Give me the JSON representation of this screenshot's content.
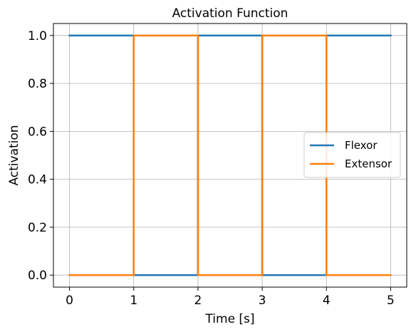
{
  "chart_data": {
    "type": "line",
    "title": "Activation Function",
    "xlabel": "Time [s]",
    "ylabel": "Activation",
    "xlim": [
      -0.25,
      5.25
    ],
    "ylim": [
      -0.05,
      1.05
    ],
    "xticks": [
      0,
      1,
      2,
      3,
      4,
      5
    ],
    "yticks": [
      0.0,
      0.2,
      0.4,
      0.6,
      0.8,
      1.0
    ],
    "xtick_labels": [
      "0",
      "1",
      "2",
      "3",
      "4",
      "5"
    ],
    "ytick_labels": [
      "0.0",
      "0.2",
      "0.4",
      "0.6",
      "0.8",
      "1.0"
    ],
    "grid": true,
    "legend_position": "center-right",
    "series": [
      {
        "name": "Flexor",
        "color": "#1f77b4",
        "x": [
          0,
          1,
          1,
          2,
          2,
          3,
          3,
          4,
          4,
          5
        ],
        "y": [
          1,
          1,
          0,
          0,
          1,
          1,
          0,
          0,
          1,
          1
        ]
      },
      {
        "name": "Extensor",
        "color": "#ff7f0e",
        "x": [
          0,
          1,
          1,
          2,
          2,
          3,
          3,
          4,
          4,
          5
        ],
        "y": [
          0,
          0,
          1,
          1,
          0,
          0,
          1,
          1,
          0,
          0
        ]
      }
    ]
  }
}
